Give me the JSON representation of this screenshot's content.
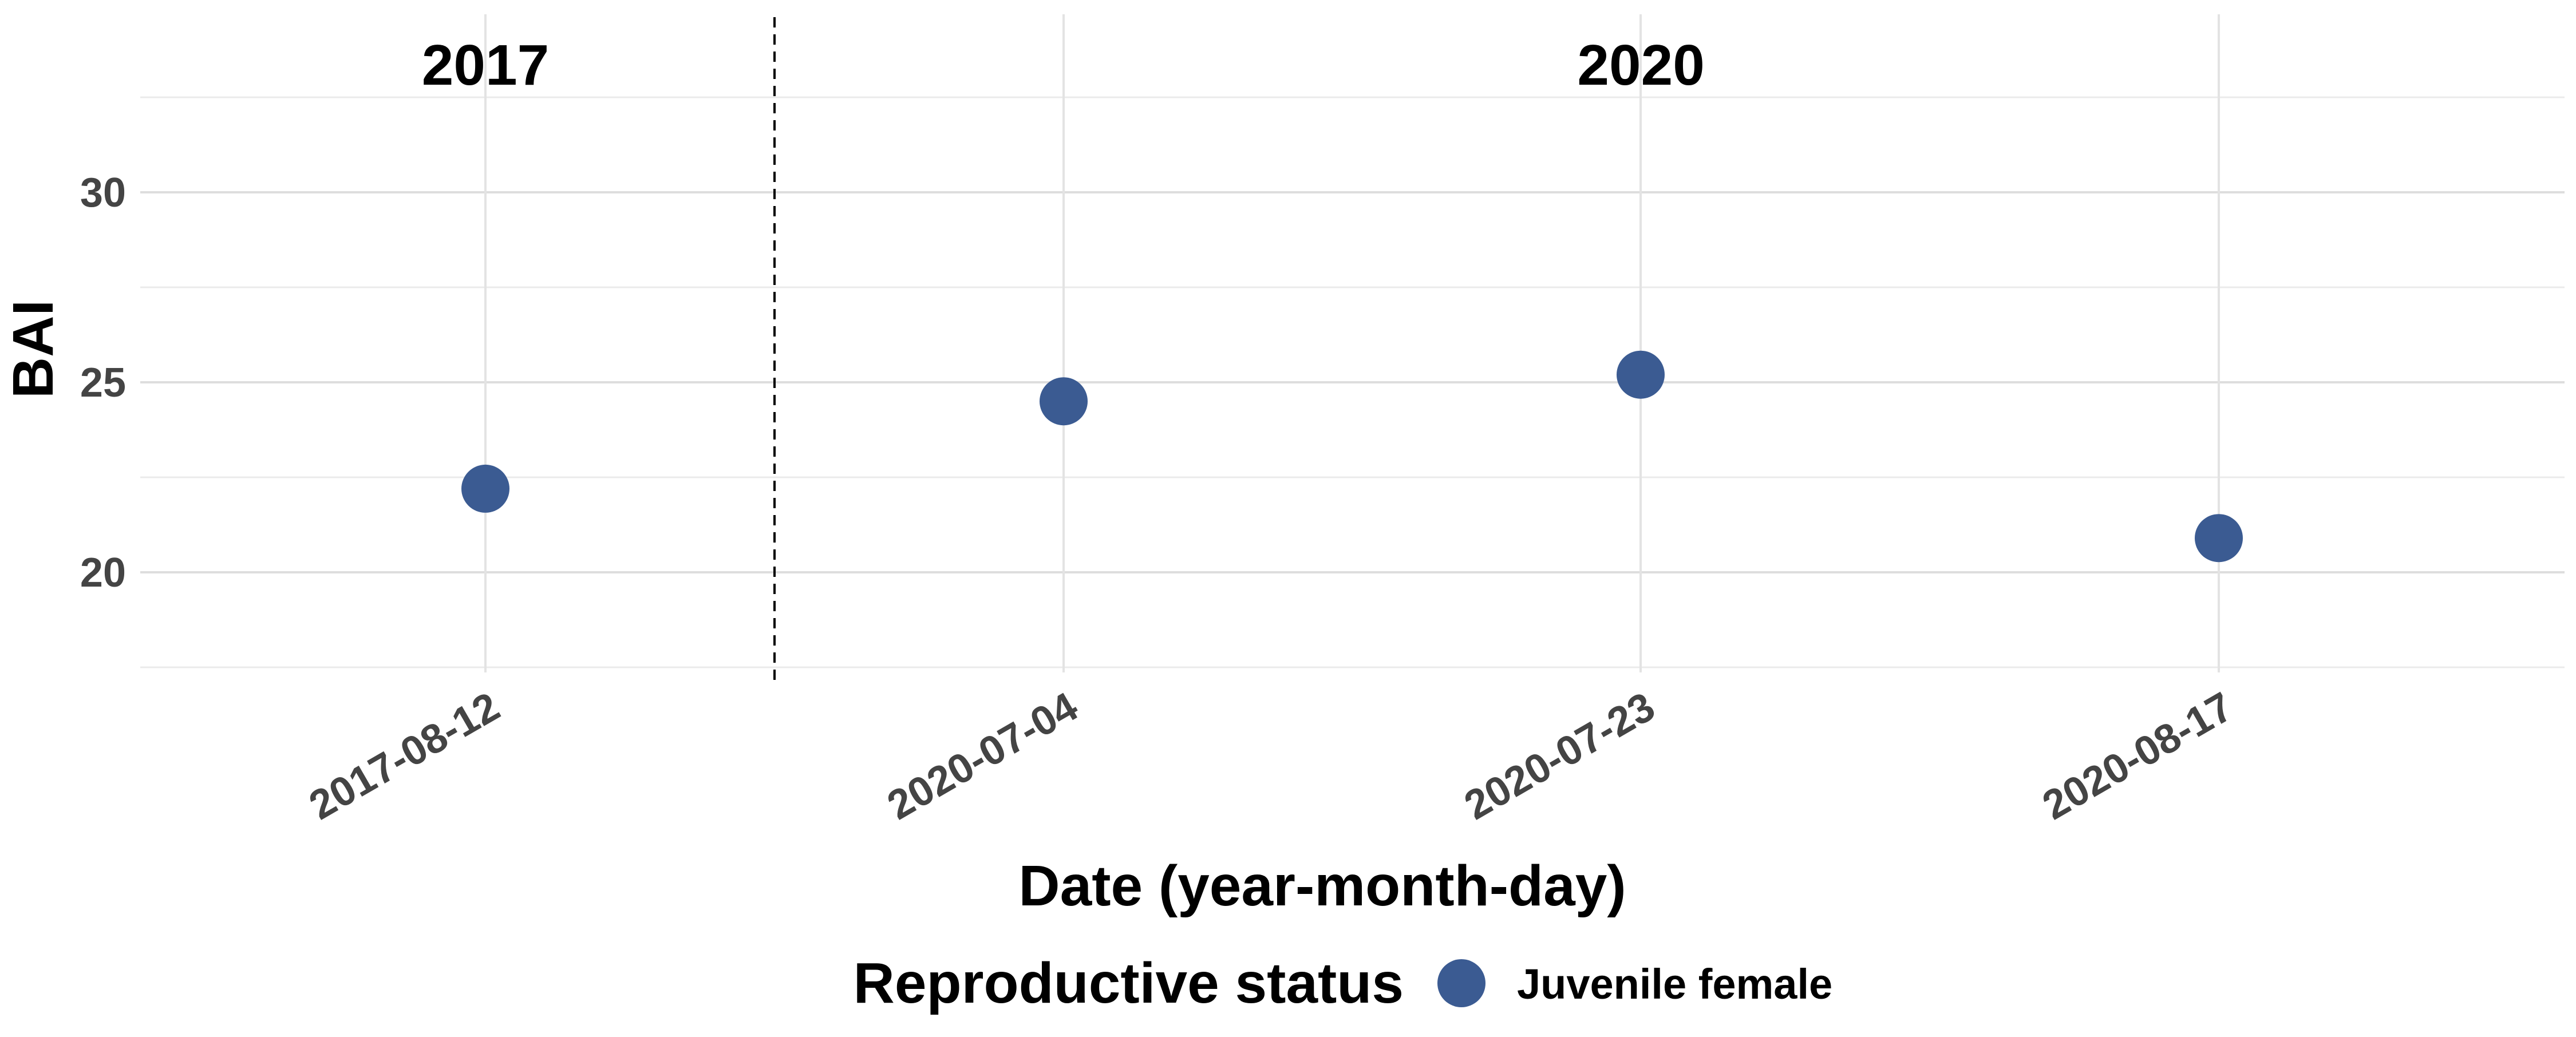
{
  "chart_data": {
    "type": "scatter",
    "title": "",
    "xlabel": "Date (year-month-day)",
    "ylabel": "BAI",
    "x": [
      "2017-08-12",
      "2020-07-04",
      "2020-07-23",
      "2020-08-17"
    ],
    "series": [
      {
        "name": "Juvenile female",
        "values": [
          22.2,
          24.5,
          25.2,
          20.9
        ],
        "color": "#3b5b92"
      }
    ],
    "yticks": [
      20,
      25,
      30
    ],
    "ylim": [
      17.5,
      32.5
    ],
    "grid": true,
    "facets": [
      {
        "label": "2017",
        "dates": [
          "2017-08-12"
        ]
      },
      {
        "label": "2020",
        "dates": [
          "2020-07-04",
          "2020-07-23",
          "2020-08-17"
        ]
      }
    ],
    "divider": {
      "between": [
        "2017-08-12",
        "2020-07-04"
      ],
      "style": "dashed"
    },
    "legend": {
      "title": "Reproductive status",
      "position": "bottom",
      "entries": [
        {
          "label": "Juvenile female",
          "color": "#3b5b92"
        }
      ]
    }
  }
}
